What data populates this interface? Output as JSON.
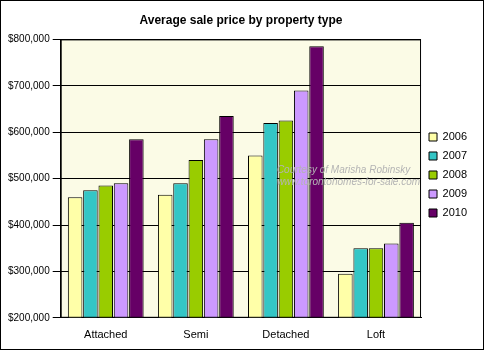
{
  "chart_data": {
    "type": "bar",
    "title": "Average sale price by property type",
    "categories": [
      "Attached",
      "Semi",
      "Detached",
      "Loft"
    ],
    "series": [
      {
        "name": "2006",
        "color": "#ffffa8",
        "values": [
          460000,
          465000,
          550000,
          295000
        ]
      },
      {
        "name": "2007",
        "color": "#33c6c6",
        "values": [
          475000,
          490000,
          620000,
          350000
        ]
      },
      {
        "name": "2008",
        "color": "#99cc00",
        "values": [
          485000,
          540000,
          625000,
          350000
        ]
      },
      {
        "name": "2009",
        "color": "#cc99ff",
        "values": [
          490000,
          585000,
          690000,
          360000
        ]
      },
      {
        "name": "2010",
        "color": "#660066",
        "values": [
          585000,
          635000,
          785000,
          405000
        ]
      }
    ],
    "ylim": [
      200000,
      800000
    ],
    "yticks": [
      {
        "value": 200000,
        "label": "$200,000"
      },
      {
        "value": 300000,
        "label": "$300,000"
      },
      {
        "value": 400000,
        "label": "$400,000"
      },
      {
        "value": 500000,
        "label": "$500,000"
      },
      {
        "value": 600000,
        "label": "$600,000"
      },
      {
        "value": 700000,
        "label": "$700,000"
      },
      {
        "value": 800000,
        "label": "$800,000"
      }
    ],
    "grid": true,
    "legend": "right",
    "annotations": [
      "Courtesy of Marisha Robinsky",
      "www.torontohomes-for-sale.com"
    ]
  }
}
